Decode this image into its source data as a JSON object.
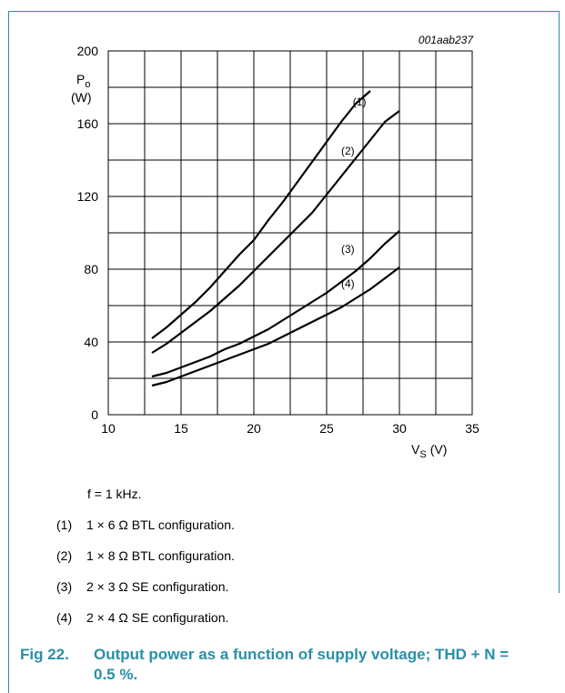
{
  "colors": {
    "frame": "#2a8fa8",
    "caption": "#2a8fa8",
    "grid": "#000000",
    "curves": "#000000"
  },
  "chart_data": {
    "type": "line",
    "code": "001aab237",
    "x_axis": {
      "label": "V",
      "label_sub": "S",
      "unit": "(V)",
      "range": [
        10,
        35
      ],
      "ticks": [
        10,
        15,
        20,
        25,
        30,
        35
      ],
      "grid_step": 2.5
    },
    "y_axis": {
      "label": "P",
      "label_sub": "o",
      "unit": "(W)",
      "range": [
        0,
        200
      ],
      "ticks": [
        0,
        40,
        80,
        120,
        160,
        200
      ],
      "grid_step": 20
    },
    "grid": true,
    "series": [
      {
        "name": "(1)",
        "x": [
          13,
          14,
          15,
          16,
          17,
          18,
          19,
          20,
          21,
          22,
          23,
          24,
          25,
          26,
          27,
          28
        ],
        "y": [
          42,
          48,
          55,
          62,
          70,
          79,
          88,
          96,
          107,
          117,
          128,
          139,
          150,
          161,
          171,
          178
        ]
      },
      {
        "name": "(2)",
        "x": [
          13,
          14,
          15,
          16,
          17,
          18,
          19,
          20,
          21,
          22,
          23,
          24,
          25,
          26,
          27,
          28,
          29,
          30
        ],
        "y": [
          34,
          39,
          45,
          51,
          57,
          64,
          71,
          79,
          87,
          95,
          103,
          111,
          121,
          131,
          141,
          151,
          161,
          167
        ]
      },
      {
        "name": "(3)",
        "x": [
          13,
          14,
          15,
          16,
          17,
          18,
          19,
          20,
          21,
          22,
          23,
          24,
          25,
          26,
          27,
          28,
          29,
          30
        ],
        "y": [
          21,
          23,
          26,
          29,
          32,
          36,
          39,
          43,
          47,
          52,
          57,
          62,
          67,
          73,
          79,
          86,
          94,
          101
        ]
      },
      {
        "name": "(4)",
        "x": [
          13,
          14,
          15,
          16,
          17,
          18,
          19,
          20,
          21,
          22,
          23,
          24,
          25,
          26,
          27,
          28,
          29,
          30
        ],
        "y": [
          16,
          18,
          21,
          24,
          27,
          30,
          33,
          36,
          39,
          43,
          47,
          51,
          55,
          59,
          64,
          69,
          75,
          81
        ]
      }
    ]
  },
  "notes": {
    "condition": "f = 1 kHz.",
    "items": [
      {
        "num": "(1)",
        "text": "1 × 6 Ω BTL configuration."
      },
      {
        "num": "(2)",
        "text": "1 × 8 Ω BTL configuration."
      },
      {
        "num": "(3)",
        "text": "2 × 3 Ω SE configuration."
      },
      {
        "num": "(4)",
        "text": "2 × 4 Ω SE configuration."
      }
    ]
  },
  "caption": {
    "number": "Fig 22.",
    "text": "Output power as a function of supply voltage; THD + N = 0.5 %."
  }
}
